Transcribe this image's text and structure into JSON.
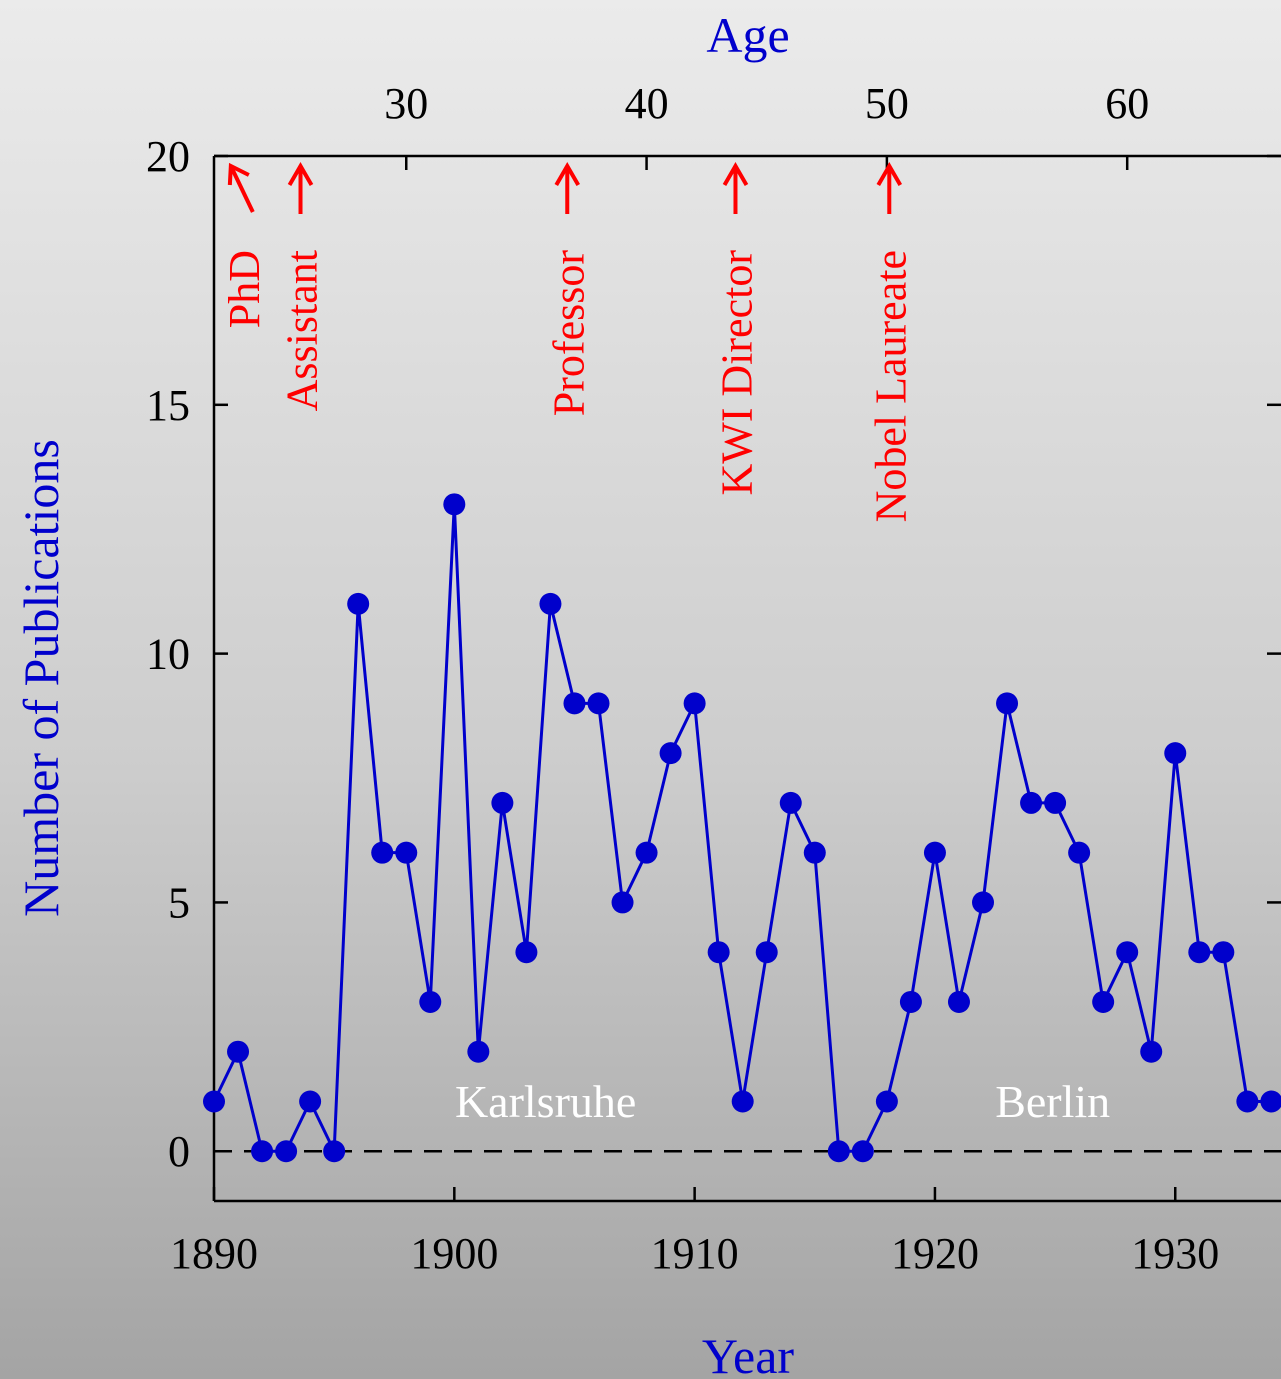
{
  "chart_data": {
    "type": "line",
    "xlabel": "Year",
    "x2label": "Age",
    "ylabel": "Number of Publications",
    "xlim": [
      1890,
      1934.4
    ],
    "ylim": [
      -1,
      20
    ],
    "x_ticks": [
      "1890",
      "1900",
      "1910",
      "1920",
      "1930"
    ],
    "x2_ticks": [
      "30",
      "40",
      "50",
      "60"
    ],
    "y_ticks": [
      "0",
      "5",
      "10",
      "15",
      "20"
    ],
    "x2_offset_years": 1868,
    "reference_line": {
      "y": 0,
      "style": "dashed"
    },
    "series": [
      {
        "x": [
          1890,
          1891,
          1892,
          1893,
          1894,
          1895,
          1896,
          1897,
          1898,
          1899,
          1900,
          1901,
          1902,
          1903,
          1904,
          1905,
          1906,
          1907,
          1908,
          1909,
          1910,
          1911,
          1912,
          1913,
          1914,
          1915,
          1916,
          1917,
          1918,
          1919,
          1920,
          1921,
          1922,
          1923,
          1924,
          1925,
          1926,
          1927,
          1928,
          1929,
          1930,
          1931,
          1932,
          1933,
          1934
        ],
        "values": [
          1,
          2,
          0,
          0,
          1,
          0,
          11,
          6,
          6,
          3,
          13,
          2,
          7,
          4,
          11,
          9,
          9,
          5,
          6,
          8,
          9,
          4,
          1,
          4,
          7,
          6,
          0,
          0,
          1,
          3,
          6,
          3,
          5,
          9,
          7,
          7,
          6,
          3,
          4,
          2,
          8,
          4,
          4,
          1,
          1
        ]
      }
    ],
    "annotations": [
      {
        "text": "PhD",
        "x": 1891.2
      },
      {
        "text": "Assistant",
        "x": 1893.6
      },
      {
        "text": "Professor",
        "x": 1904.7
      },
      {
        "text": "KWI Director",
        "x": 1911.7
      },
      {
        "text": "Nobel Laureate",
        "x": 1918.1
      }
    ],
    "regions": [
      {
        "text": "Karlsruhe",
        "x": 1903.8
      },
      {
        "text": "Berlin",
        "x": 1924.9
      }
    ],
    "colors": {
      "series": "#0000cc",
      "axis_titles": "#0000cc",
      "annotations": "#ff0000",
      "regions": "#ffffff"
    }
  }
}
